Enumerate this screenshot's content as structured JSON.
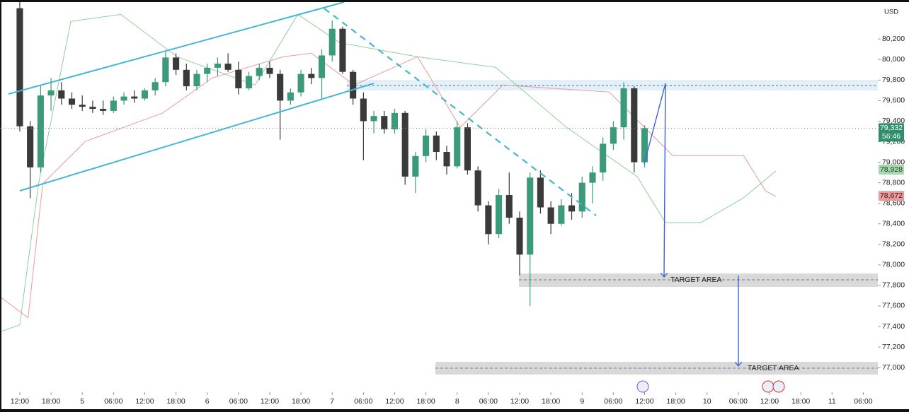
{
  "chart_data": {
    "type": "candlestick",
    "currency": "USD",
    "up_color": "#3b9a7b",
    "down_color": "#3a3a3a",
    "xlim": [
      -1.9,
      82.4
    ],
    "ylim": [
      76760,
      80580
    ],
    "ohlc": [
      [
        80500,
        80580,
        79300,
        79350
      ],
      [
        79350,
        79400,
        78650,
        78950
      ],
      [
        78950,
        79750,
        78900,
        79650
      ],
      [
        79650,
        79820,
        79500,
        79700
      ],
      [
        79700,
        79780,
        79560,
        79620
      ],
      [
        79620,
        79680,
        79520,
        79560
      ],
      [
        79560,
        79650,
        79500,
        79540
      ],
      [
        79540,
        79600,
        79480,
        79520
      ],
      [
        79520,
        79600,
        79460,
        79500
      ],
      [
        79500,
        79640,
        79480,
        79600
      ],
      [
        79600,
        79680,
        79560,
        79640
      ],
      [
        79640,
        79700,
        79580,
        79620
      ],
      [
        79620,
        79720,
        79600,
        79700
      ],
      [
        79700,
        79820,
        79650,
        79780
      ],
      [
        79780,
        80080,
        79740,
        80020
      ],
      [
        80020,
        80060,
        79850,
        79900
      ],
      [
        79900,
        79960,
        79700,
        79740
      ],
      [
        79740,
        79900,
        79700,
        79860
      ],
      [
        79860,
        79960,
        79780,
        79920
      ],
      [
        79920,
        80020,
        79840,
        79960
      ],
      [
        79960,
        80060,
        79880,
        79900
      ],
      [
        79900,
        79980,
        79660,
        79720
      ],
      [
        79720,
        79880,
        79700,
        79840
      ],
      [
        79840,
        79960,
        79800,
        79920
      ],
      [
        79920,
        79980,
        79820,
        79860
      ],
      [
        79860,
        79900,
        79220,
        79600
      ],
      [
        79600,
        79720,
        79560,
        79680
      ],
      [
        79680,
        79900,
        79640,
        79860
      ],
      [
        79860,
        79920,
        79760,
        79820
      ],
      [
        79820,
        80100,
        79620,
        80040
      ],
      [
        80040,
        80380,
        79980,
        80300
      ],
      [
        80300,
        80320,
        79860,
        79880
      ],
      [
        79880,
        79900,
        79560,
        79620
      ],
      [
        79620,
        79680,
        79020,
        79400
      ],
      [
        79400,
        79500,
        79280,
        79450
      ],
      [
        79450,
        79500,
        79280,
        79320
      ],
      [
        79320,
        79520,
        79280,
        79480
      ],
      [
        79480,
        79500,
        78780,
        78860
      ],
      [
        78860,
        79100,
        78700,
        79060
      ],
      [
        79060,
        79320,
        79000,
        79260
      ],
      [
        79260,
        79300,
        79020,
        79100
      ],
      [
        79100,
        79160,
        78880,
        78960
      ],
      [
        78960,
        79400,
        78940,
        79340
      ],
      [
        79340,
        79380,
        78880,
        78920
      ],
      [
        78920,
        78960,
        78520,
        78580
      ],
      [
        78580,
        78620,
        78200,
        78300
      ],
      [
        78300,
        78740,
        78260,
        78680
      ],
      [
        78680,
        78900,
        78400,
        78460
      ],
      [
        78460,
        78520,
        77900,
        78100
      ],
      [
        78100,
        78900,
        77600,
        78850
      ],
      [
        78850,
        78920,
        78500,
        78560
      ],
      [
        78560,
        78620,
        78300,
        78400
      ],
      [
        78400,
        78640,
        78380,
        78580
      ],
      [
        78580,
        78700,
        78440,
        78520
      ],
      [
        78520,
        78860,
        78460,
        78800
      ],
      [
        78800,
        78960,
        78600,
        78900
      ],
      [
        78900,
        79240,
        78820,
        79180
      ],
      [
        79180,
        79400,
        79120,
        79340
      ],
      [
        79340,
        79780,
        79220,
        79720
      ],
      [
        79720,
        79740,
        78900,
        79000
      ],
      [
        79000,
        79360,
        78950,
        79332
      ]
    ],
    "lines": [
      {
        "color": "#8fcf98",
        "x": [
          -1.9,
          0,
          1.8,
          4.9,
          9.7,
          15.1,
          22.6,
          26.7,
          30.7,
          38.2,
          45.7,
          52.5,
          59.3,
          62,
          65.4,
          69.5,
          72.6
        ],
        "values": [
          77347,
          77416,
          78790,
          80371,
          80440,
          80027,
          79752,
          80440,
          80165,
          80027,
          79924,
          79340,
          78859,
          78412,
          78412,
          78653,
          78914
        ]
      },
      {
        "color": "#ec9a9a",
        "x": [
          -1.9,
          0.8,
          2.2,
          6.3,
          13.7,
          18.5,
          25.3,
          28,
          32.1,
          38.2,
          42.3,
          46.4,
          56.6,
          62.7,
          69.5,
          71.6,
          72.6
        ],
        "values": [
          77690,
          77485,
          78790,
          79203,
          79478,
          79821,
          80027,
          80062,
          79752,
          80027,
          79340,
          79752,
          79684,
          79065,
          79065,
          78722,
          78667
        ]
      }
    ],
    "yticks": [
      {
        "value": 77000,
        "label": "77,000"
      },
      {
        "value": 77200,
        "label": "77,200"
      },
      {
        "value": 77400,
        "label": "77,400"
      },
      {
        "value": 77600,
        "label": "77,600"
      },
      {
        "value": 77800,
        "label": "77,800"
      },
      {
        "value": 78000,
        "label": "78,000"
      },
      {
        "value": 78200,
        "label": "78,200"
      },
      {
        "value": 78400,
        "label": "78,400"
      },
      {
        "value": 78600,
        "label": "78,600"
      },
      {
        "value": 78800,
        "label": "78,800"
      },
      {
        "value": 79000,
        "label": "79,000"
      },
      {
        "value": 79200,
        "label": "79,200"
      },
      {
        "value": 79400,
        "label": "79,400"
      },
      {
        "value": 79600,
        "label": "79,600"
      },
      {
        "value": 79800,
        "label": "79,800"
      },
      {
        "value": 80000,
        "label": "80,000"
      },
      {
        "value": 80200,
        "label": "80,200"
      }
    ],
    "xticks": [
      {
        "value": 0,
        "label": "12:00"
      },
      {
        "value": 3,
        "label": "18:00"
      },
      {
        "value": 6,
        "label": "5"
      },
      {
        "value": 9,
        "label": "06:00"
      },
      {
        "value": 12,
        "label": "12:00"
      },
      {
        "value": 15,
        "label": "18:00"
      },
      {
        "value": 18,
        "label": "6"
      },
      {
        "value": 21,
        "label": "06:00"
      },
      {
        "value": 24,
        "label": "12:00"
      },
      {
        "value": 27,
        "label": "18:00"
      },
      {
        "value": 30,
        "label": "7"
      },
      {
        "value": 33,
        "label": "06:00"
      },
      {
        "value": 36,
        "label": "12:00"
      },
      {
        "value": 39,
        "label": "18:00"
      },
      {
        "value": 42,
        "label": "8"
      },
      {
        "value": 45,
        "label": "06:00"
      },
      {
        "value": 48,
        "label": "12:00"
      },
      {
        "value": 51,
        "label": "18:00"
      },
      {
        "value": 54,
        "label": "9"
      },
      {
        "value": 57,
        "label": "06:00"
      },
      {
        "value": 60,
        "label": "12:00"
      },
      {
        "value": 63,
        "label": "18:00"
      },
      {
        "value": 66,
        "label": "10"
      },
      {
        "value": 69,
        "label": "06:00"
      },
      {
        "value": 72,
        "label": "12:00"
      },
      {
        "value": 75,
        "label": "18:00"
      },
      {
        "value": 78,
        "label": "11"
      },
      {
        "value": 81,
        "label": "06:00"
      }
    ],
    "price_labels": [
      {
        "value": 79332,
        "label": "79,332",
        "timer": "56:46",
        "color": "#2f8f6c",
        "text_color": "#ffffff"
      },
      {
        "value": 78928,
        "label": "78,928",
        "color": "#a6d8ae",
        "text_color": "#1d3d22"
      },
      {
        "value": 78672,
        "label": "78,672",
        "color": "#e69c9c",
        "text_color": "#4a1515"
      }
    ],
    "annotations": [
      "TARGET AREA",
      "TARGET AREA"
    ]
  }
}
